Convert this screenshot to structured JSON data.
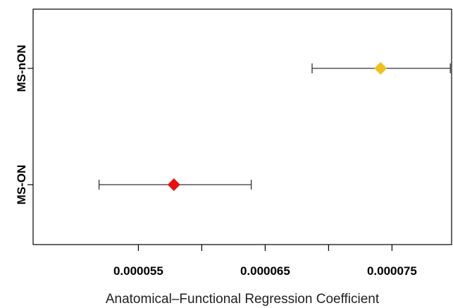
{
  "chart_data": {
    "type": "forest",
    "xlabel": "Anatomical–Functional Regression Coefficient",
    "xlim": [
      4.67e-05,
      7.97e-05
    ],
    "x_ticks": [
      5.5e-05,
      6e-05,
      6.5e-05,
      7e-05,
      7.5e-05,
      8e-05
    ],
    "x_tick_labels": [
      "0.000055",
      "",
      "0.000065",
      "",
      "0.000075",
      ""
    ],
    "categories": [
      "MS-nON",
      "MS-ON"
    ],
    "points": [
      {
        "category": "MS-nON",
        "estimate": 7.41e-05,
        "lower": 6.87e-05,
        "upper": 7.96e-05,
        "color": "#f0c020"
      },
      {
        "category": "MS-ON",
        "estimate": 5.78e-05,
        "lower": 5.19e-05,
        "upper": 6.39e-05,
        "color": "#e81010"
      }
    ],
    "grid": false
  }
}
